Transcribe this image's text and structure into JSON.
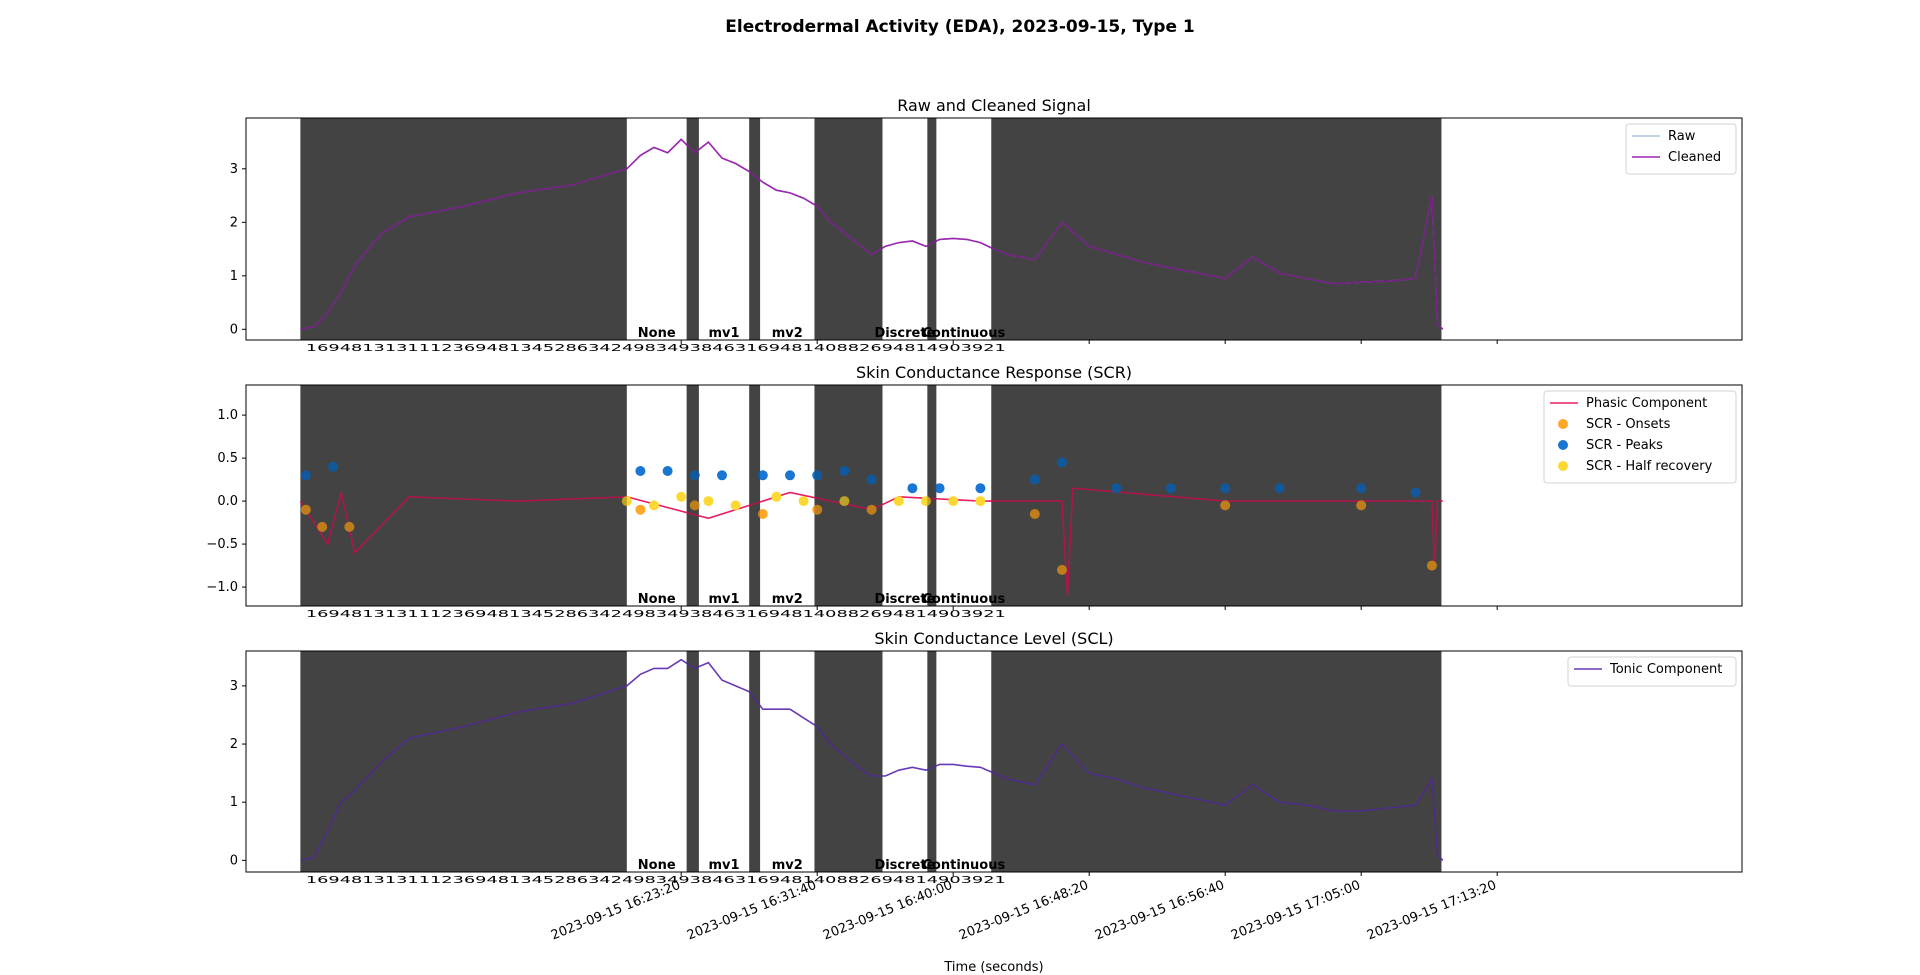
{
  "figure": {
    "title": "Electrodermal Activity (EDA), 2023-09-15, Type 1",
    "xlabel": "Time (seconds)",
    "x_ticks": [
      "2023-09-15 16:23:20",
      "2023-09-15 16:31:40",
      "2023-09-15 16:40:00",
      "2023-09-15 16:48:20",
      "2023-09-15 16:56:40",
      "2023-09-15 17:05:00",
      "2023-09-15 17:13:20"
    ],
    "x_tick_values": [
      1694795000,
      1694795500,
      1694796000,
      1694796500,
      1694797000,
      1694797500,
      1694798000
    ],
    "xlim": [
      1694793400,
      1694798900
    ],
    "segments": [
      {
        "start": 1694793600,
        "end": 1694794800,
        "label": "",
        "shaded": true
      },
      {
        "start": 1694793690,
        "end": 1694793710,
        "label": "",
        "shaded": false
      },
      {
        "start": 1694794800,
        "end": 1694795020,
        "label": "None",
        "shaded": false
      },
      {
        "start": 1694795020,
        "end": 1694795065,
        "label": "",
        "shaded": true
      },
      {
        "start": 1694795065,
        "end": 1694795250,
        "label": "mv1",
        "shaded": false
      },
      {
        "start": 1694795250,
        "end": 1694795290,
        "label": "",
        "shaded": true
      },
      {
        "start": 1694795290,
        "end": 1694795490,
        "label": "mv2",
        "shaded": false
      },
      {
        "start": 1694795490,
        "end": 1694795740,
        "label": "",
        "shaded": true
      },
      {
        "start": 1694795740,
        "end": 1694795905,
        "label": "Discrete",
        "shaded": false
      },
      {
        "start": 1694795905,
        "end": 1694795938,
        "label": "",
        "shaded": true
      },
      {
        "start": 1694795938,
        "end": 1694796140,
        "label": "Continuous",
        "shaded": false
      },
      {
        "start": 1694796140,
        "end": 1694797795,
        "label": "",
        "shaded": true
      }
    ],
    "segment_ids": "16948131311123694813452863424983493846316948140882694814903921"
  },
  "colors": {
    "raw": "#a8c4e0",
    "cleaned": "#9c27b0",
    "phasic": "#e91e63",
    "onsets": "#ffa726",
    "peaks": "#1976d2",
    "half_recovery": "#fdd835",
    "tonic": "#673ab7",
    "shade": "#000000"
  },
  "chart_data": [
    {
      "type": "line",
      "title": "Raw and Cleaned Signal",
      "ylim": [
        -0.2,
        3.95
      ],
      "yticks": [
        0,
        1,
        2,
        3
      ],
      "legend": "top-right",
      "series": [
        {
          "name": "Raw",
          "x": [
            1694793600,
            1694793650,
            1694793700,
            1694793750,
            1694793800,
            1694793900,
            1694794000,
            1694794200,
            1694794400,
            1694794600,
            1694794800,
            1694794850,
            1694794900,
            1694794950,
            1694795000,
            1694795050,
            1694795100,
            1694795150,
            1694795200,
            1694795250,
            1694795300,
            1694795350,
            1694795400,
            1694795450,
            1694795500,
            1694795550,
            1694795600,
            1694795650,
            1694795700,
            1694795750,
            1694795800,
            1694795850,
            1694795900,
            1694795950,
            1694796000,
            1694796050,
            1694796100,
            1694796150,
            1694796200,
            1694796300,
            1694796400,
            1694796500,
            1694796600,
            1694796700,
            1694796800,
            1694796900,
            1694797000,
            1694797100,
            1694797200,
            1694797300,
            1694797400,
            1694797500,
            1694797600,
            1694797700,
            1694797760,
            1694797780,
            1694797800
          ],
          "y": [
            0.0,
            0.05,
            0.3,
            0.7,
            1.2,
            1.8,
            2.1,
            2.3,
            2.55,
            2.7,
            3.0,
            3.25,
            3.4,
            3.3,
            3.55,
            3.3,
            3.5,
            3.2,
            3.1,
            2.95,
            2.75,
            2.6,
            2.55,
            2.45,
            2.3,
            2.0,
            1.8,
            1.6,
            1.4,
            1.55,
            1.62,
            1.65,
            1.55,
            1.68,
            1.7,
            1.68,
            1.62,
            1.5,
            1.4,
            1.3,
            2.0,
            1.55,
            1.4,
            1.25,
            1.15,
            1.05,
            0.95,
            1.35,
            1.05,
            0.95,
            0.85,
            0.88,
            0.9,
            0.95,
            2.5,
            0.1,
            0.0
          ]
        },
        {
          "name": "Cleaned",
          "x": [
            1694793600,
            1694793650,
            1694793700,
            1694793750,
            1694793800,
            1694793900,
            1694794000,
            1694794200,
            1694794400,
            1694794600,
            1694794800,
            1694794850,
            1694794900,
            1694794950,
            1694795000,
            1694795050,
            1694795100,
            1694795150,
            1694795200,
            1694795250,
            1694795300,
            1694795350,
            1694795400,
            1694795450,
            1694795500,
            1694795550,
            1694795600,
            1694795650,
            1694795700,
            1694795750,
            1694795800,
            1694795850,
            1694795900,
            1694795950,
            1694796000,
            1694796050,
            1694796100,
            1694796150,
            1694796200,
            1694796300,
            1694796400,
            1694796500,
            1694796600,
            1694796700,
            1694796800,
            1694796900,
            1694797000,
            1694797100,
            1694797200,
            1694797300,
            1694797400,
            1694797500,
            1694797600,
            1694797700,
            1694797760,
            1694797780,
            1694797800
          ],
          "y": [
            0.0,
            0.05,
            0.3,
            0.7,
            1.2,
            1.8,
            2.1,
            2.3,
            2.55,
            2.7,
            3.0,
            3.25,
            3.4,
            3.3,
            3.55,
            3.3,
            3.5,
            3.2,
            3.1,
            2.95,
            2.75,
            2.6,
            2.55,
            2.45,
            2.3,
            2.0,
            1.8,
            1.6,
            1.4,
            1.55,
            1.62,
            1.65,
            1.55,
            1.68,
            1.7,
            1.68,
            1.62,
            1.5,
            1.4,
            1.3,
            2.0,
            1.55,
            1.4,
            1.25,
            1.15,
            1.05,
            0.95,
            1.35,
            1.05,
            0.95,
            0.85,
            0.88,
            0.9,
            0.95,
            2.5,
            0.1,
            0.0
          ]
        }
      ]
    },
    {
      "type": "line",
      "title": "Skin Conductance Response (SCR)",
      "ylim": [
        -1.22,
        1.35
      ],
      "yticks": [
        -1.0,
        -0.5,
        0.0,
        0.5,
        1.0
      ],
      "ytick_labels": [
        "−1.0",
        "−0.5",
        "0.0",
        "0.5",
        "1.0"
      ],
      "legend": "top-right",
      "series": [
        {
          "name": "Phasic Component",
          "x": [
            1694793600,
            1694793700,
            1694793750,
            1694793800,
            1694794000,
            1694794400,
            1694794800,
            1694795100,
            1694795400,
            1694795700,
            1694795800,
            1694796100,
            1694796400,
            1694796420,
            1694796440,
            1694797000,
            1694797500,
            1694797760,
            1694797770,
            1694797780,
            1694797800
          ],
          "y": [
            0.0,
            -0.5,
            0.1,
            -0.6,
            0.05,
            0.0,
            0.05,
            -0.2,
            0.1,
            -0.1,
            0.05,
            0.0,
            0.0,
            -1.1,
            0.15,
            0.0,
            0.0,
            0.0,
            -0.8,
            0.0,
            0.0
          ]
        },
        {
          "name": "SCR - Onsets",
          "type": "scatter",
          "x": [
            1694793620,
            1694793680,
            1694793780,
            1694794850,
            1694795050,
            1694795300,
            1694795500,
            1694795700,
            1694796300,
            1694796400,
            1694797000,
            1694797500,
            1694797760
          ],
          "y": [
            -0.1,
            -0.3,
            -0.3,
            -0.1,
            -0.05,
            -0.15,
            -0.1,
            -0.1,
            -0.15,
            -0.8,
            -0.05,
            -0.05,
            -0.75
          ]
        },
        {
          "name": "SCR - Peaks",
          "type": "scatter",
          "x": [
            1694793620,
            1694793720,
            1694794850,
            1694794950,
            1694795050,
            1694795150,
            1694795300,
            1694795400,
            1694795500,
            1694795600,
            1694795700,
            1694795850,
            1694795950,
            1694796100,
            1694796300,
            1694796400,
            1694796600,
            1694796800,
            1694797000,
            1694797200,
            1694797500,
            1694797700
          ],
          "y": [
            0.3,
            0.4,
            0.35,
            0.35,
            0.3,
            0.3,
            0.3,
            0.3,
            0.3,
            0.35,
            0.25,
            0.15,
            0.15,
            0.15,
            0.25,
            0.45,
            0.15,
            0.15,
            0.15,
            0.15,
            0.15,
            0.1
          ]
        },
        {
          "name": "SCR - Half recovery",
          "type": "scatter",
          "x": [
            1694794800,
            1694794900,
            1694795000,
            1694795100,
            1694795200,
            1694795350,
            1694795450,
            1694795600,
            1694795800,
            1694795900,
            1694796000,
            1694796100
          ],
          "y": [
            0.0,
            -0.05,
            0.05,
            0.0,
            -0.05,
            0.05,
            0.0,
            0.0,
            0.0,
            0.0,
            0.0,
            0.0
          ]
        }
      ]
    },
    {
      "type": "line",
      "title": "Skin Conductance Level (SCL)",
      "ylim": [
        -0.2,
        3.6
      ],
      "yticks": [
        0,
        1,
        2,
        3
      ],
      "legend": "top-right",
      "series": [
        {
          "name": "Tonic Component",
          "x": [
            1694793600,
            1694793650,
            1694793700,
            1694793750,
            1694793800,
            1694793900,
            1694794000,
            1694794200,
            1694794400,
            1694794600,
            1694794800,
            1694794850,
            1694794900,
            1694794950,
            1694795000,
            1694795050,
            1694795100,
            1694795150,
            1694795200,
            1694795250,
            1694795300,
            1694795350,
            1694795400,
            1694795450,
            1694795500,
            1694795550,
            1694795600,
            1694795650,
            1694795700,
            1694795750,
            1694795800,
            1694795850,
            1694795900,
            1694795950,
            1694796000,
            1694796050,
            1694796100,
            1694796150,
            1694796200,
            1694796300,
            1694796400,
            1694796500,
            1694796600,
            1694796700,
            1694796800,
            1694796900,
            1694797000,
            1694797100,
            1694797200,
            1694797300,
            1694797400,
            1694797500,
            1694797600,
            1694797700,
            1694797760,
            1694797780,
            1694797800
          ],
          "y": [
            0.0,
            0.05,
            0.5,
            1.0,
            1.2,
            1.7,
            2.1,
            2.3,
            2.55,
            2.7,
            3.0,
            3.2,
            3.3,
            3.3,
            3.45,
            3.3,
            3.4,
            3.1,
            3.0,
            2.9,
            2.6,
            2.6,
            2.6,
            2.45,
            2.3,
            2.0,
            1.8,
            1.6,
            1.45,
            1.45,
            1.55,
            1.6,
            1.55,
            1.65,
            1.65,
            1.62,
            1.6,
            1.5,
            1.4,
            1.3,
            2.0,
            1.5,
            1.4,
            1.25,
            1.15,
            1.05,
            0.95,
            1.3,
            1.0,
            0.95,
            0.85,
            0.85,
            0.9,
            0.95,
            1.4,
            0.1,
            0.0
          ]
        }
      ]
    }
  ]
}
